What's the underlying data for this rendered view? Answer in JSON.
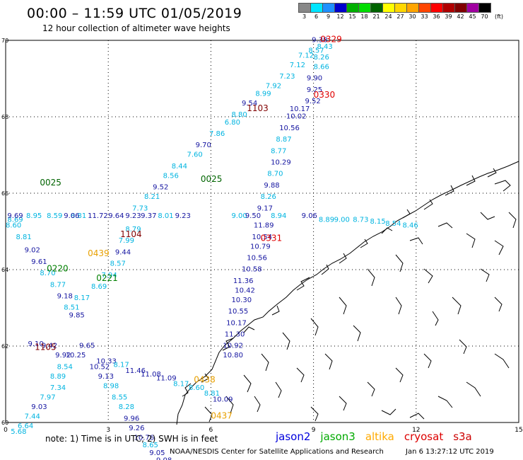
{
  "header": {
    "title": "00:00 – 11:59 UTC 01/05/2019",
    "subtitle": "12 hour collection of altimeter wave heights"
  },
  "legend": {
    "unit": "(ft)",
    "bins": [
      {
        "label": "3",
        "color": "#888888"
      },
      {
        "label": "6",
        "color": "#00e5ff"
      },
      {
        "label": "9",
        "color": "#1e90ff"
      },
      {
        "label": "12",
        "color": "#0000cd"
      },
      {
        "label": "15",
        "color": "#00b000"
      },
      {
        "label": "18",
        "color": "#00dd00"
      },
      {
        "label": "21",
        "color": "#006400"
      },
      {
        "label": "24",
        "color": "#ffff00"
      },
      {
        "label": "27",
        "color": "#ffd700"
      },
      {
        "label": "30",
        "color": "#ffa500"
      },
      {
        "label": "33",
        "color": "#ff4500"
      },
      {
        "label": "36",
        "color": "#ff0000"
      },
      {
        "label": "39",
        "color": "#b00000"
      },
      {
        "label": "42",
        "color": "#800000"
      },
      {
        "label": "45",
        "color": "#a000a0"
      },
      {
        "label": "70",
        "color": "#000000"
      }
    ]
  },
  "axes": {
    "lon_ticks": [
      "0",
      "3",
      "6",
      "9",
      "12",
      "15"
    ],
    "lat_ticks": [
      "70",
      "68",
      "66",
      "64",
      "62",
      "60"
    ]
  },
  "colors": {
    "light": "#00b4e0",
    "dark": "#1414a0",
    "green": "#008000",
    "orange": "#e8a000",
    "red": "#e00000",
    "darkred": "#800000"
  },
  "passes": [
    {
      "label": "0329",
      "color": "#e00000",
      "lon": 9.2,
      "lat": 69.95
    },
    {
      "label": "0330",
      "color": "#e00000",
      "lon": 9.0,
      "lat": 68.5
    },
    {
      "label": "1103",
      "color": "#800000",
      "lon": 7.05,
      "lat": 68.15
    },
    {
      "label": "0331",
      "color": "#e00000",
      "lon": 7.45,
      "lat": 64.75
    },
    {
      "label": "1104",
      "color": "#800000",
      "lon": 3.35,
      "lat": 64.85
    },
    {
      "label": "1105",
      "color": "#800000",
      "lon": 0.85,
      "lat": 61.9
    },
    {
      "label": "0025",
      "color": "#006400",
      "lon": 1.0,
      "lat": 66.2
    },
    {
      "label": "0025",
      "color": "#006400",
      "lon": 5.7,
      "lat": 66.3
    },
    {
      "label": "0220",
      "color": "#008000",
      "lon": 1.2,
      "lat": 63.95
    },
    {
      "label": "0221",
      "color": "#008000",
      "lon": 2.65,
      "lat": 63.7
    },
    {
      "label": "0439",
      "color": "#e8a000",
      "lon": 2.4,
      "lat": 64.35
    },
    {
      "label": "0438",
      "color": "#e8a000",
      "lon": 5.5,
      "lat": 61.05
    },
    {
      "label": "0437",
      "color": "#e8a000",
      "lon": 6.0,
      "lat": 60.1
    }
  ],
  "observations": [
    {
      "v": "9.38",
      "c": "#1414a0",
      "lon": 8.95,
      "lat": 69.95
    },
    {
      "v": "8.43",
      "c": "#00b4e0",
      "lon": 9.1,
      "lat": 69.78
    },
    {
      "v": "8.57",
      "c": "#00b4e0",
      "lon": 8.85,
      "lat": 69.68
    },
    {
      "v": "8.26",
      "c": "#00b4e0",
      "lon": 9.0,
      "lat": 69.5
    },
    {
      "v": "7.12",
      "c": "#00b4e0",
      "lon": 8.55,
      "lat": 69.55
    },
    {
      "v": "7.12",
      "c": "#00b4e0",
      "lon": 8.3,
      "lat": 69.3
    },
    {
      "v": "8.66",
      "c": "#00b4e0",
      "lon": 9.0,
      "lat": 69.25
    },
    {
      "v": "7.23",
      "c": "#00b4e0",
      "lon": 8.0,
      "lat": 69.0
    },
    {
      "v": "9.90",
      "c": "#1414a0",
      "lon": 8.8,
      "lat": 68.95
    },
    {
      "v": "7.92",
      "c": "#00b4e0",
      "lon": 7.6,
      "lat": 68.75
    },
    {
      "v": "9.25",
      "c": "#1414a0",
      "lon": 8.8,
      "lat": 68.65
    },
    {
      "v": "8.99",
      "c": "#00b4e0",
      "lon": 7.3,
      "lat": 68.55
    },
    {
      "v": "9.52",
      "c": "#1414a0",
      "lon": 8.75,
      "lat": 68.35
    },
    {
      "v": "9.54",
      "c": "#1414a0",
      "lon": 6.9,
      "lat": 68.3
    },
    {
      "v": "10.17",
      "c": "#1414a0",
      "lon": 8.3,
      "lat": 68.15
    },
    {
      "v": "8.80",
      "c": "#00b4e0",
      "lon": 6.6,
      "lat": 68.0
    },
    {
      "v": "10.02",
      "c": "#1414a0",
      "lon": 8.2,
      "lat": 67.95
    },
    {
      "v": "6.80",
      "c": "#00b4e0",
      "lon": 6.4,
      "lat": 67.8
    },
    {
      "v": "10.56",
      "c": "#1414a0",
      "lon": 8.0,
      "lat": 67.65
    },
    {
      "v": "7.86",
      "c": "#00b4e0",
      "lon": 5.95,
      "lat": 67.5
    },
    {
      "v": "8.87",
      "c": "#00b4e0",
      "lon": 7.9,
      "lat": 67.35
    },
    {
      "v": "9.70",
      "c": "#1414a0",
      "lon": 5.55,
      "lat": 67.2
    },
    {
      "v": "8.77",
      "c": "#00b4e0",
      "lon": 7.75,
      "lat": 67.05
    },
    {
      "v": "7.60",
      "c": "#00b4e0",
      "lon": 5.3,
      "lat": 66.95
    },
    {
      "v": "10.29",
      "c": "#1414a0",
      "lon": 7.75,
      "lat": 66.75
    },
    {
      "v": "8.44",
      "c": "#00b4e0",
      "lon": 4.85,
      "lat": 66.65
    },
    {
      "v": "8.70",
      "c": "#00b4e0",
      "lon": 7.65,
      "lat": 66.45
    },
    {
      "v": "8.56",
      "c": "#00b4e0",
      "lon": 4.6,
      "lat": 66.4
    },
    {
      "v": "9.52",
      "c": "#1414a0",
      "lon": 4.3,
      "lat": 66.1
    },
    {
      "v": "9.88",
      "c": "#1414a0",
      "lon": 7.55,
      "lat": 66.15
    },
    {
      "v": "8.21",
      "c": "#00b4e0",
      "lon": 4.05,
      "lat": 65.85
    },
    {
      "v": "8.26",
      "c": "#00b4e0",
      "lon": 7.45,
      "lat": 65.85
    },
    {
      "v": "9.17",
      "c": "#1414a0",
      "lon": 7.35,
      "lat": 65.55
    },
    {
      "v": "7.73",
      "c": "#00b4e0",
      "lon": 3.7,
      "lat": 65.55
    },
    {
      "v": "8.69",
      "c": "#00b4e0",
      "lon": 0.05,
      "lat": 65.25
    },
    {
      "v": "8.60",
      "c": "#00b4e0",
      "lon": 0.0,
      "lat": 65.1
    },
    {
      "v": "8.81",
      "c": "#00b4e0",
      "lon": 0.3,
      "lat": 64.8
    },
    {
      "v": "9.02",
      "c": "#1414a0",
      "lon": 0.55,
      "lat": 64.45
    },
    {
      "v": "9.61",
      "c": "#1414a0",
      "lon": 0.75,
      "lat": 64.15
    },
    {
      "v": "8.70",
      "c": "#00b4e0",
      "lon": 1.0,
      "lat": 63.85
    },
    {
      "v": "8.77",
      "c": "#00b4e0",
      "lon": 1.3,
      "lat": 63.55
    },
    {
      "v": "9.18",
      "c": "#1414a0",
      "lon": 1.5,
      "lat": 63.25
    },
    {
      "v": "8.51",
      "c": "#00b4e0",
      "lon": 1.7,
      "lat": 62.95
    },
    {
      "v": "9.85",
      "c": "#1414a0",
      "lon": 1.85,
      "lat": 62.75
    },
    {
      "v": "8.17",
      "c": "#00b4e0",
      "lon": 2.0,
      "lat": 63.2
    },
    {
      "v": "8.69",
      "c": "#00b4e0",
      "lon": 2.5,
      "lat": 63.5
    },
    {
      "v": "7.94",
      "c": "#00b4e0",
      "lon": 2.8,
      "lat": 63.8
    },
    {
      "v": "8.57",
      "c": "#00b4e0",
      "lon": 3.05,
      "lat": 64.1
    },
    {
      "v": "9.44",
      "c": "#1414a0",
      "lon": 3.2,
      "lat": 64.4
    },
    {
      "v": "7.99",
      "c": "#00b4e0",
      "lon": 3.3,
      "lat": 64.7
    },
    {
      "v": "8.79",
      "c": "#00b4e0",
      "lon": 3.5,
      "lat": 65.0
    },
    {
      "v": "8.81",
      "c": "#00b4e0",
      "lon": 1.9,
      "lat": 65.35
    },
    {
      "v": "11.72",
      "c": "#1414a0",
      "lon": 2.4,
      "lat": 65.35
    },
    {
      "v": "9.64",
      "c": "#1414a0",
      "lon": 3.0,
      "lat": 65.35
    },
    {
      "v": "9.23",
      "c": "#1414a0",
      "lon": 3.5,
      "lat": 65.35
    },
    {
      "v": "9.37",
      "c": "#1414a0",
      "lon": 3.95,
      "lat": 65.35
    },
    {
      "v": "8.01",
      "c": "#00b4e0",
      "lon": 4.45,
      "lat": 65.35
    },
    {
      "v": "9.23",
      "c": "#1414a0",
      "lon": 4.95,
      "lat": 65.35
    },
    {
      "v": "9.00",
      "c": "#00b4e0",
      "lon": 6.6,
      "lat": 65.35
    },
    {
      "v": "9.50",
      "c": "#1414a0",
      "lon": 7.0,
      "lat": 65.35
    },
    {
      "v": "8.94",
      "c": "#00b4e0",
      "lon": 7.75,
      "lat": 65.35
    },
    {
      "v": "9.06",
      "c": "#1414a0",
      "lon": 8.65,
      "lat": 65.35
    },
    {
      "v": "8.89",
      "c": "#00b4e0",
      "lon": 9.15,
      "lat": 65.25
    },
    {
      "v": "9.00",
      "c": "#00b4e0",
      "lon": 9.6,
      "lat": 65.25
    },
    {
      "v": "8.73",
      "c": "#00b4e0",
      "lon": 10.15,
      "lat": 65.25
    },
    {
      "v": "8.15",
      "c": "#00b4e0",
      "lon": 10.65,
      "lat": 65.2
    },
    {
      "v": "8.54",
      "c": "#00b4e0",
      "lon": 11.1,
      "lat": 65.15
    },
    {
      "v": "8.46",
      "c": "#00b4e0",
      "lon": 11.6,
      "lat": 65.1
    },
    {
      "v": "11.89",
      "c": "#1414a0",
      "lon": 7.25,
      "lat": 65.1
    },
    {
      "v": "10.54",
      "c": "#1414a0",
      "lon": 7.2,
      "lat": 64.8
    },
    {
      "v": "10.79",
      "c": "#1414a0",
      "lon": 7.15,
      "lat": 64.55
    },
    {
      "v": "10.56",
      "c": "#1414a0",
      "lon": 7.05,
      "lat": 64.25
    },
    {
      "v": "10.58",
      "c": "#1414a0",
      "lon": 6.9,
      "lat": 63.95
    },
    {
      "v": "11.36",
      "c": "#1414a0",
      "lon": 6.65,
      "lat": 63.65
    },
    {
      "v": "10.42",
      "c": "#1414a0",
      "lon": 6.7,
      "lat": 63.4
    },
    {
      "v": "10.30",
      "c": "#1414a0",
      "lon": 6.6,
      "lat": 63.15
    },
    {
      "v": "10.55",
      "c": "#1414a0",
      "lon": 6.5,
      "lat": 62.85
    },
    {
      "v": "10.17",
      "c": "#1414a0",
      "lon": 6.45,
      "lat": 62.55
    },
    {
      "v": "11.30",
      "c": "#1414a0",
      "lon": 6.4,
      "lat": 62.25
    },
    {
      "v": "10.92",
      "c": "#1414a0",
      "lon": 6.35,
      "lat": 61.95
    },
    {
      "v": "10.80",
      "c": "#1414a0",
      "lon": 6.35,
      "lat": 61.7
    },
    {
      "v": "9.10",
      "c": "#1414a0",
      "lon": 0.65,
      "lat": 62.0
    },
    {
      "v": "9.42",
      "c": "#1414a0",
      "lon": 1.05,
      "lat": 61.95
    },
    {
      "v": "9.92",
      "c": "#1414a0",
      "lon": 1.45,
      "lat": 61.7
    },
    {
      "v": "8.54",
      "c": "#00b4e0",
      "lon": 1.5,
      "lat": 61.4
    },
    {
      "v": "8.89",
      "c": "#00b4e0",
      "lon": 1.3,
      "lat": 61.15
    },
    {
      "v": "7.34",
      "c": "#00b4e0",
      "lon": 1.3,
      "lat": 60.85
    },
    {
      "v": "7.97",
      "c": "#00b4e0",
      "lon": 1.0,
      "lat": 60.6
    },
    {
      "v": "9.03",
      "c": "#1414a0",
      "lon": 0.75,
      "lat": 60.35
    },
    {
      "v": "7.44",
      "c": "#00b4e0",
      "lon": 0.55,
      "lat": 60.1
    },
    {
      "v": "6.64",
      "c": "#00b4e0",
      "lon": 0.35,
      "lat": 59.85
    },
    {
      "v": "5.68",
      "c": "#00b4e0",
      "lon": 0.15,
      "lat": 59.7
    },
    {
      "v": "10.25",
      "c": "#1414a0",
      "lon": 1.75,
      "lat": 61.7
    },
    {
      "v": "9.65",
      "c": "#1414a0",
      "lon": 2.15,
      "lat": 61.95
    },
    {
      "v": "10.52",
      "c": "#1414a0",
      "lon": 2.45,
      "lat": 61.4
    },
    {
      "v": "10.33",
      "c": "#1414a0",
      "lon": 2.65,
      "lat": 61.55
    },
    {
      "v": "9.13",
      "c": "#1414a0",
      "lon": 2.7,
      "lat": 61.15
    },
    {
      "v": "8.98",
      "c": "#00b4e0",
      "lon": 2.85,
      "lat": 60.9
    },
    {
      "v": "8.55",
      "c": "#00b4e0",
      "lon": 3.1,
      "lat": 60.6
    },
    {
      "v": "8.28",
      "c": "#00b4e0",
      "lon": 3.3,
      "lat": 60.35
    },
    {
      "v": "9.96",
      "c": "#1414a0",
      "lon": 3.45,
      "lat": 60.05
    },
    {
      "v": "9.26",
      "c": "#1414a0",
      "lon": 3.6,
      "lat": 59.8
    },
    {
      "v": "10.76",
      "c": "#1414a0",
      "lon": 3.75,
      "lat": 59.55
    },
    {
      "v": "8.65",
      "c": "#00b4e0",
      "lon": 4.0,
      "lat": 59.35
    },
    {
      "v": "9.05",
      "c": "#1414a0",
      "lon": 4.2,
      "lat": 59.15
    },
    {
      "v": "9.08",
      "c": "#1414a0",
      "lon": 4.4,
      "lat": 58.95
    },
    {
      "v": "11.46",
      "c": "#1414a0",
      "lon": 3.5,
      "lat": 61.3
    },
    {
      "v": "11.08",
      "c": "#1414a0",
      "lon": 3.95,
      "lat": 61.2
    },
    {
      "v": "11.09",
      "c": "#1414a0",
      "lon": 4.4,
      "lat": 61.1
    },
    {
      "v": "8.17",
      "c": "#00b4e0",
      "lon": 4.9,
      "lat": 60.95
    },
    {
      "v": "8.60",
      "c": "#00b4e0",
      "lon": 5.35,
      "lat": 60.85
    },
    {
      "v": "8.81",
      "c": "#00b4e0",
      "lon": 5.8,
      "lat": 60.7
    },
    {
      "v": "10.09",
      "c": "#1414a0",
      "lon": 6.05,
      "lat": 60.55
    },
    {
      "v": "8.17",
      "c": "#00b4e0",
      "lon": 3.15,
      "lat": 61.45
    },
    {
      "v": "9.06",
      "c": "#1414a0",
      "lon": 1.7,
      "lat": 65.35
    },
    {
      "v": "9.69",
      "c": "#1414a0",
      "lon": 0.05,
      "lat": 65.35
    },
    {
      "v": "8.95",
      "c": "#00b4e0",
      "lon": 0.6,
      "lat": 65.35
    },
    {
      "v": "8.59",
      "c": "#00b4e0",
      "lon": 1.2,
      "lat": 65.35
    }
  ],
  "notes": {
    "note": "note:  1) Time is in UTC;  2) SWH is in feet",
    "missions": [
      {
        "name": "jason2",
        "color": "#0000dd"
      },
      {
        "name": "jason3",
        "color": "#00aa00"
      },
      {
        "name": "altika",
        "color": "#ffaa00"
      },
      {
        "name": "cryosat",
        "color": "#dd0000"
      },
      {
        "name": "s3a",
        "color": "#cc0000"
      }
    ],
    "credit": "NOAA/NESDIS Center for Satellite Applications and Research",
    "timestamp": "Jan  6 13:27:12 UTC 2019"
  }
}
